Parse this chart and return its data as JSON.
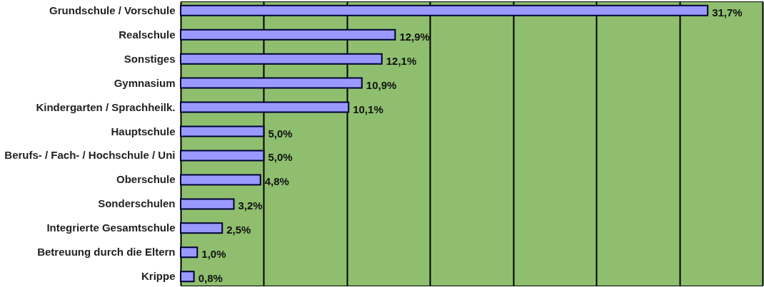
{
  "chart_data": {
    "type": "bar",
    "orientation": "horizontal",
    "categories": [
      "Grundschule / Vorschule",
      "Realschule",
      "Sonstiges",
      "Gymnasium",
      "Kindergarten / Sprachheilk.",
      "Hauptschule",
      "Berufs- / Fach- / Hochschule / Uni",
      "Oberschule",
      "Sonderschulen",
      "Integrierte Gesamtschule",
      "Betreuung durch die Eltern",
      "Krippe"
    ],
    "values": [
      31.7,
      12.9,
      12.1,
      10.9,
      10.1,
      5.0,
      5.0,
      4.8,
      3.2,
      2.5,
      1.0,
      0.8
    ],
    "value_labels": [
      "31,7%",
      "12,9%",
      "12,1%",
      "10,9%",
      "10,1%",
      "5,0%",
      "5,0%",
      "4,8%",
      "3,2%",
      "2,5%",
      "1,0%",
      "0,8%"
    ],
    "color": "#9999ff",
    "xlim": [
      0,
      35
    ],
    "xticks": [
      {
        "value": 0,
        "label": null
      },
      {
        "value": 5,
        "label": null
      },
      {
        "value": 10,
        "label": null
      },
      {
        "value": 15,
        "label": null
      },
      {
        "value": 20,
        "label": null
      },
      {
        "value": 25,
        "label": null
      },
      {
        "value": 30,
        "label": null
      },
      {
        "value": 35,
        "label": null
      }
    ],
    "tick_labels": "y",
    "grid": "x"
  }
}
